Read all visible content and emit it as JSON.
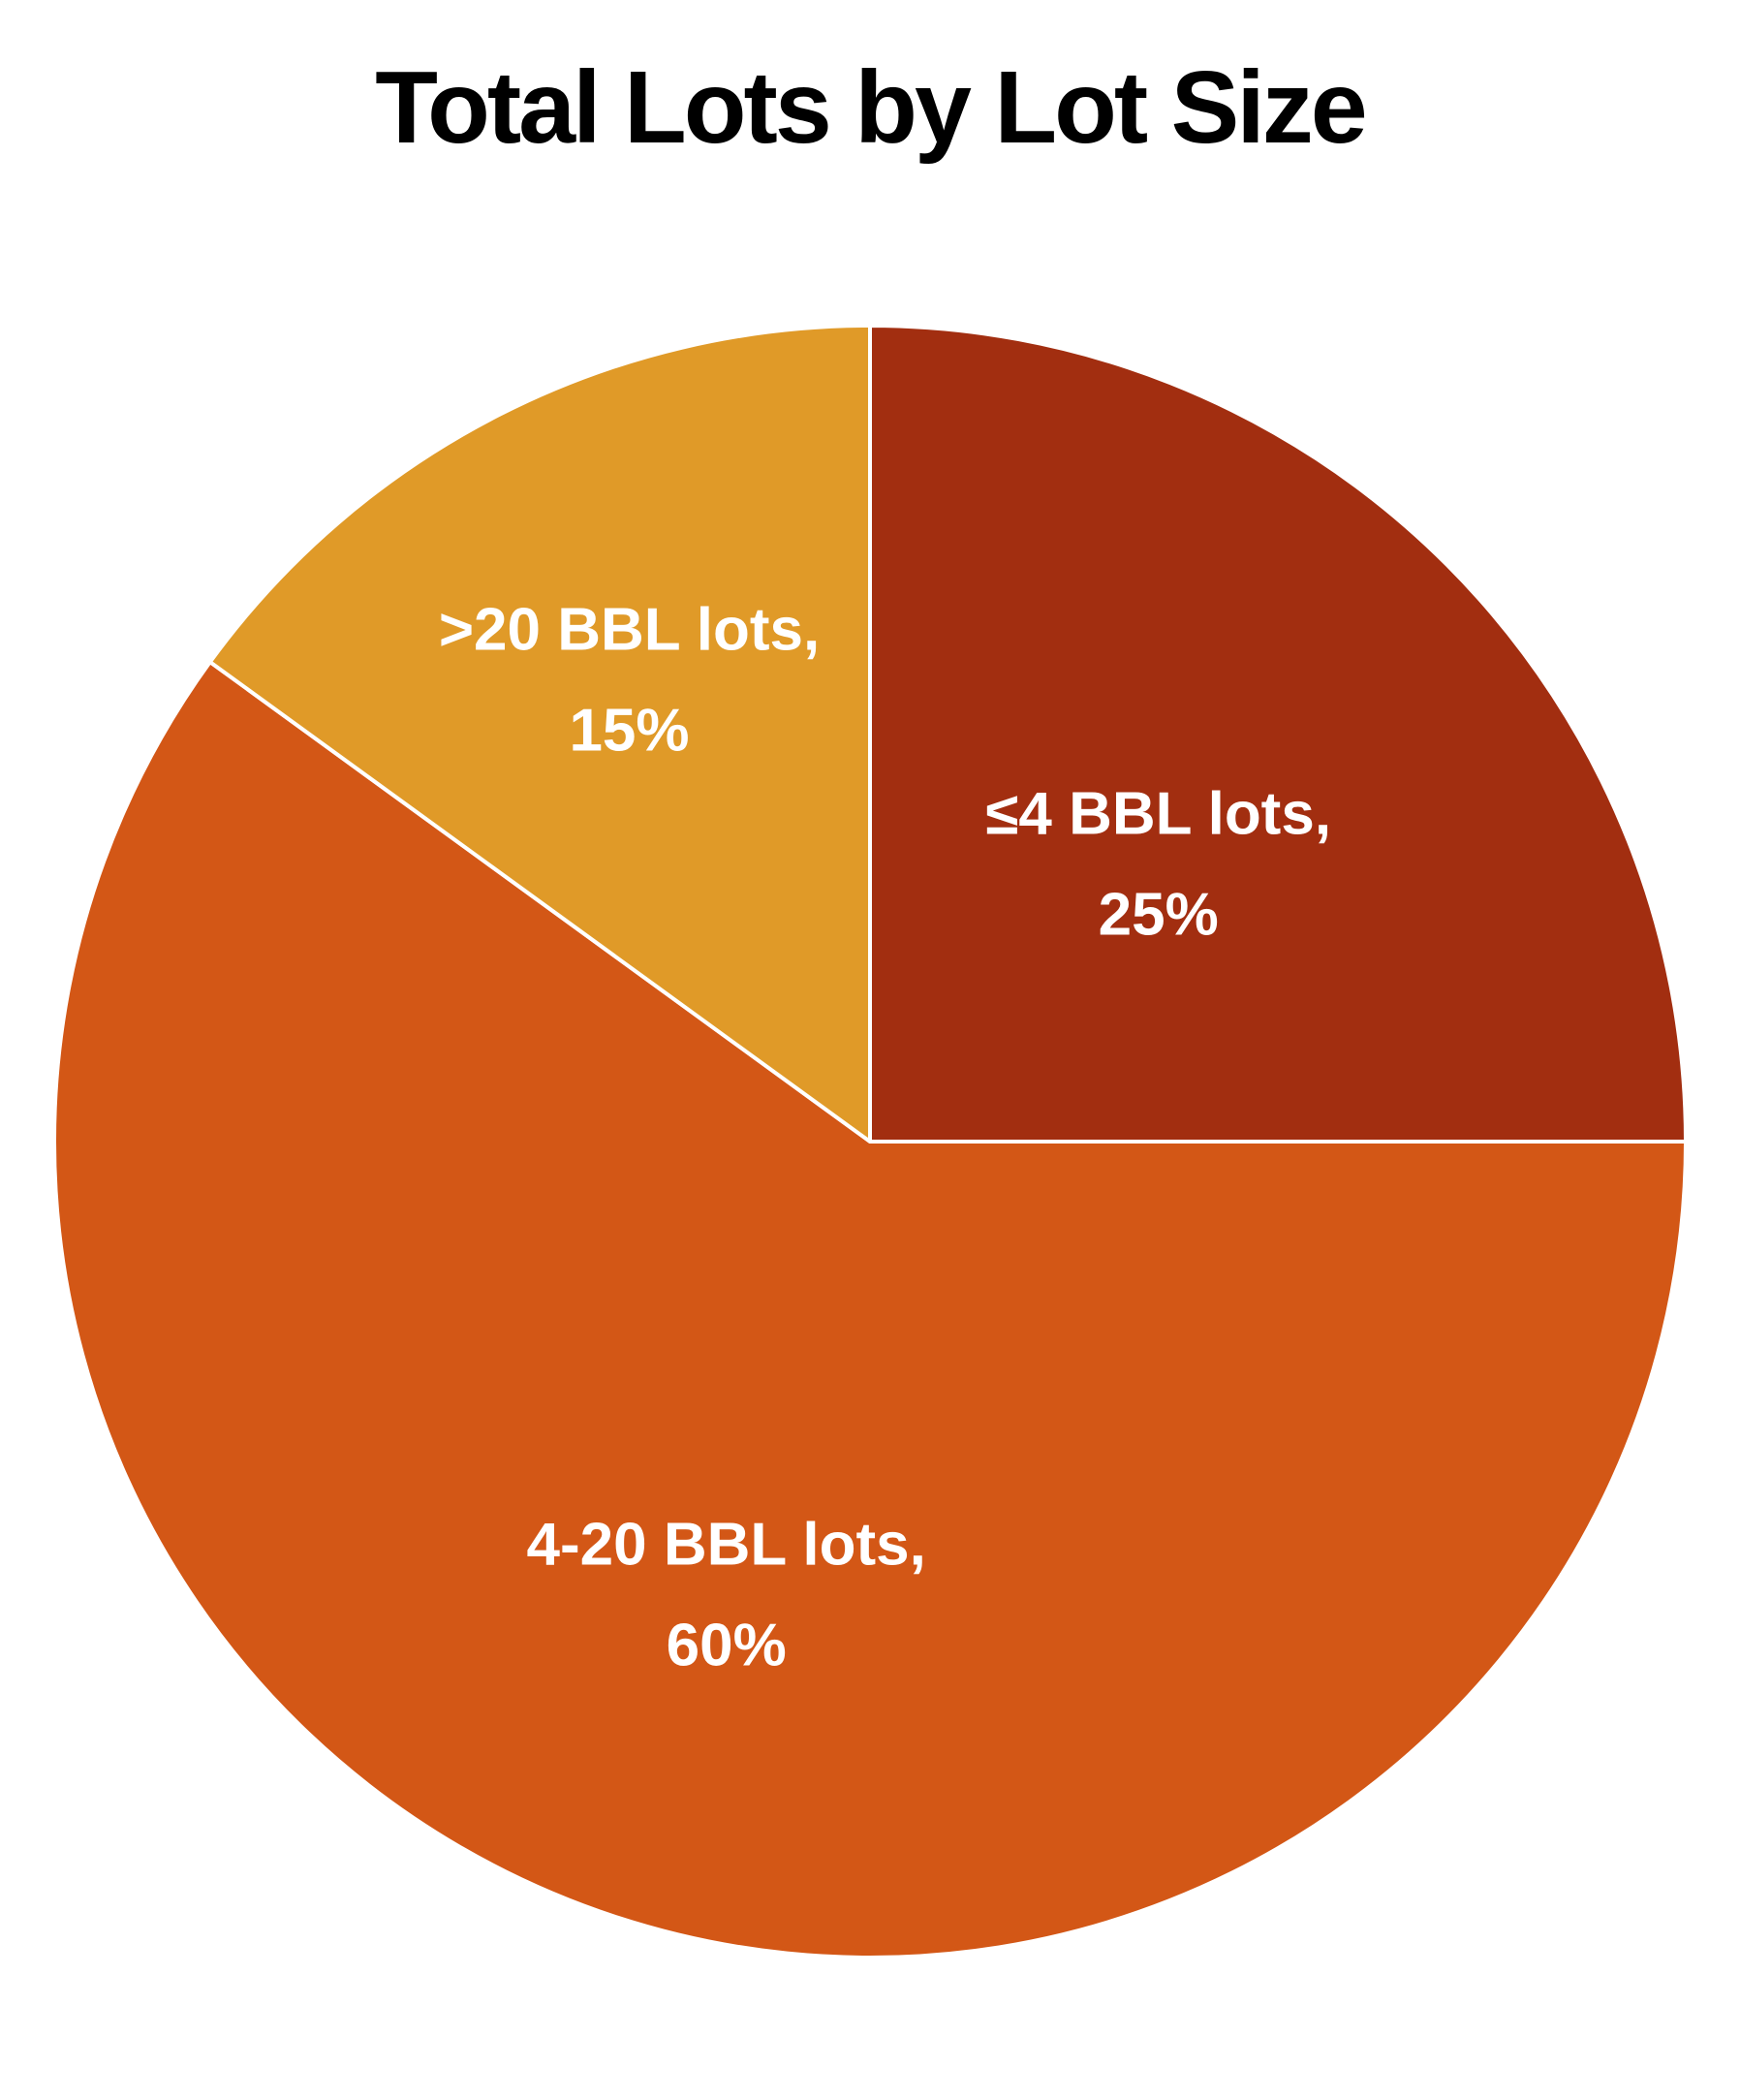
{
  "chart_data": {
    "type": "pie",
    "title": "Total Lots by Lot Size",
    "start_angle_deg": 0,
    "direction": "clockwise",
    "slices": [
      {
        "label": "≤4 BBL lots,",
        "value_label": "25%",
        "value": 25,
        "color": "#A22E10"
      },
      {
        "label": "4-20 BBL lots,",
        "value_label": "60%",
        "value": 60,
        "color": "#D35716"
      },
      {
        "label": ">20 BBL lots,",
        "value_label": "15%",
        "value": 15,
        "color": "#E09A28"
      }
    ],
    "legend": "none",
    "slice_border_color": "#ffffff"
  }
}
